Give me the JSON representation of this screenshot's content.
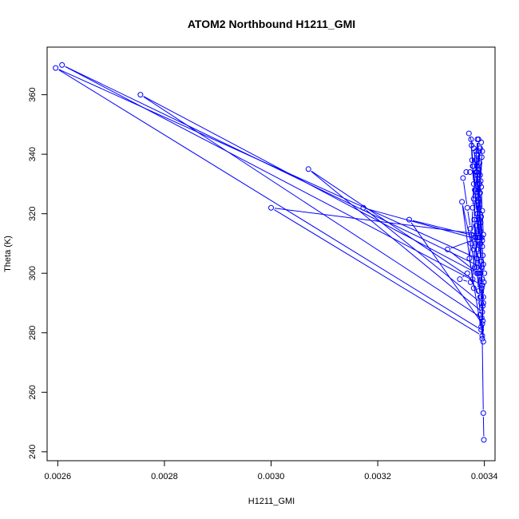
{
  "chart_data": {
    "type": "line",
    "title": "ATOM2 Northbound H1211_GMI",
    "xlabel": "H1211_GMI",
    "ylabel": "Theta (K)",
    "xlim": [
      0.00258,
      0.00342
    ],
    "ylim": [
      237,
      376
    ],
    "x_ticks": [
      0.0026,
      0.0028,
      0.003,
      0.0032,
      0.0034
    ],
    "x_tick_labels": [
      "0.0026",
      "0.0028",
      "0.0030",
      "0.0032",
      "0.0034"
    ],
    "y_ticks": [
      240,
      260,
      280,
      300,
      320,
      340,
      360
    ],
    "y_tick_labels": [
      "240",
      "260",
      "280",
      "300",
      "320",
      "340",
      "360"
    ],
    "grid": false,
    "series": [
      {
        "color": "#0000ff",
        "marker": "open-circle",
        "line": true,
        "points": [
          [
            0.003399,
            244
          ],
          [
            0.003398,
            253
          ],
          [
            0.003396,
            278
          ],
          [
            0.003394,
            282
          ],
          [
            0.003397,
            289
          ],
          [
            0.003395,
            295
          ],
          [
            0.003393,
            300
          ],
          [
            0.00339,
            306
          ],
          [
            0.003388,
            312
          ],
          [
            0.003386,
            318
          ],
          [
            0.003389,
            324
          ],
          [
            0.003391,
            330
          ],
          [
            0.00339,
            336
          ],
          [
            0.003392,
            342
          ],
          [
            0.003389,
            345
          ],
          [
            0.003386,
            340
          ],
          [
            0.003383,
            333
          ],
          [
            0.00338,
            325
          ],
          [
            0.003382,
            318
          ],
          [
            0.003384,
            312
          ],
          [
            0.003386,
            305
          ],
          [
            0.002596,
            369
          ],
          [
            0.003394,
            281
          ],
          [
            0.003372,
            305
          ],
          [
            0.003376,
            313
          ],
          [
            0.003378,
            322
          ],
          [
            0.00338,
            330
          ],
          [
            0.003377,
            338
          ],
          [
            0.003375,
            345
          ],
          [
            0.003371,
            347
          ],
          [
            0.00338,
            342
          ],
          [
            0.003385,
            334
          ],
          [
            0.003388,
            326
          ],
          [
            0.003391,
            318
          ],
          [
            0.003393,
            310
          ],
          [
            0.003395,
            302
          ],
          [
            0.002608,
            370
          ],
          [
            0.003396,
            296
          ],
          [
            0.003394,
            304
          ],
          [
            0.003392,
            312
          ],
          [
            0.003387,
            320
          ],
          [
            0.003383,
            328
          ],
          [
            0.003379,
            336
          ],
          [
            0.003373,
            334
          ],
          [
            0.003366,
            334
          ],
          [
            0.00336,
            332
          ],
          [
            0.003368,
            322
          ],
          [
            0.003374,
            315
          ],
          [
            0.00338,
            308
          ],
          [
            0.003386,
            300
          ],
          [
            0.002755,
            360
          ],
          [
            0.003395,
            285
          ],
          [
            0.003398,
            277
          ],
          [
            0.003397,
            284
          ],
          [
            0.003394,
            292
          ],
          [
            0.00339,
            300
          ],
          [
            0.003387,
            308
          ],
          [
            0.003384,
            316
          ],
          [
            0.003389,
            323
          ],
          [
            0.003393,
            331
          ],
          [
            0.003395,
            339
          ],
          [
            0.003394,
            344
          ],
          [
            0.003396,
            341
          ],
          [
            0.003392,
            333
          ],
          [
            0.003388,
            324
          ],
          [
            0.003385,
            316
          ],
          [
            0.003382,
            309
          ],
          [
            0.003378,
            298
          ],
          [
            0.00307,
            335
          ],
          [
            0.003396,
            287
          ],
          [
            0.003398,
            292
          ],
          [
            0.003399,
            297
          ],
          [
            0.0034,
            300
          ],
          [
            0.003397,
            306
          ],
          [
            0.003393,
            314
          ],
          [
            0.00339,
            322
          ],
          [
            0.003387,
            330
          ],
          [
            0.003384,
            338
          ],
          [
            0.003387,
            345
          ],
          [
            0.003391,
            337
          ],
          [
            0.003394,
            329
          ],
          [
            0.003396,
            321
          ],
          [
            0.003398,
            313
          ],
          [
            0.003,
            322
          ],
          [
            0.003396,
            279
          ],
          [
            0.003392,
            286
          ],
          [
            0.003389,
            294
          ],
          [
            0.003386,
            302
          ],
          [
            0.003383,
            310
          ],
          [
            0.003381,
            318
          ],
          [
            0.003383,
            326
          ],
          [
            0.003386,
            334
          ],
          [
            0.003389,
            341
          ],
          [
            0.00339,
            335
          ],
          [
            0.003392,
            327
          ],
          [
            0.003394,
            319
          ],
          [
            0.003396,
            311
          ],
          [
            0.003173,
            322
          ],
          [
            0.003394,
            290
          ],
          [
            0.003396,
            298
          ],
          [
            0.003398,
            303
          ],
          [
            0.003396,
            309
          ],
          [
            0.003393,
            317
          ],
          [
            0.00339,
            325
          ],
          [
            0.003387,
            333
          ],
          [
            0.003384,
            341
          ],
          [
            0.003386,
            336
          ],
          [
            0.003389,
            328
          ],
          [
            0.003392,
            320
          ],
          [
            0.003395,
            312
          ],
          [
            0.003259,
            318
          ],
          [
            0.003396,
            283
          ],
          [
            0.003398,
            290
          ],
          [
            0.003396,
            296
          ],
          [
            0.003393,
            304
          ],
          [
            0.00339,
            312
          ],
          [
            0.003386,
            320
          ],
          [
            0.003382,
            328
          ],
          [
            0.003378,
            336
          ],
          [
            0.003376,
            343
          ],
          [
            0.003379,
            336
          ],
          [
            0.003383,
            328
          ],
          [
            0.003387,
            320
          ],
          [
            0.003391,
            312
          ],
          [
            0.003331,
            308
          ],
          [
            0.003388,
            300
          ],
          [
            0.003392,
            292
          ],
          [
            0.003368,
            300
          ],
          [
            0.003354,
            298
          ],
          [
            0.003374,
            297
          ],
          [
            0.00338,
            295
          ],
          [
            0.003358,
            324
          ],
          [
            0.003375,
            310
          ],
          [
            0.003382,
            302
          ]
        ]
      }
    ]
  }
}
